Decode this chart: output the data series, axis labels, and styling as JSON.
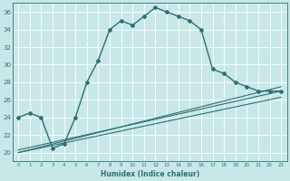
{
  "xlabel": "Humidex (Indice chaleur)",
  "bg_color": "#c8e8e8",
  "grid_color": "#ffffff",
  "line_color": "#2d7070",
  "xlim": [
    -0.5,
    23.5
  ],
  "ylim": [
    19,
    37
  ],
  "yticks": [
    20,
    22,
    24,
    26,
    28,
    30,
    32,
    34,
    36
  ],
  "xticks": [
    0,
    1,
    2,
    3,
    4,
    5,
    6,
    7,
    8,
    9,
    10,
    11,
    12,
    13,
    14,
    15,
    16,
    17,
    18,
    19,
    20,
    21,
    22,
    23
  ],
  "series": [
    {
      "x": [
        0,
        1,
        2,
        3,
        4,
        5,
        6,
        7,
        8,
        9,
        10,
        11,
        12,
        13,
        14,
        15,
        16,
        17,
        18,
        19,
        20,
        21,
        22,
        23
      ],
      "y": [
        24.0,
        24.5,
        24.0,
        20.5,
        21.0,
        24.0,
        28.0,
        30.5,
        34.0,
        35.0,
        34.5,
        35.5,
        36.5,
        36.0,
        35.5,
        35.0,
        34.0,
        29.5,
        29.0,
        28.0,
        27.5,
        27.0,
        27.0,
        27.0
      ],
      "marker": "D",
      "markersize": 2.0,
      "linewidth": 1.0
    },
    {
      "x": [
        0,
        23
      ],
      "y": [
        20.0,
        27.5
      ],
      "marker": null,
      "linewidth": 0.8
    },
    {
      "x": [
        0,
        23
      ],
      "y": [
        20.3,
        27.0
      ],
      "marker": null,
      "linewidth": 0.8
    },
    {
      "x": [
        0,
        23
      ],
      "y": [
        20.0,
        26.3
      ],
      "marker": null,
      "linewidth": 0.8
    }
  ]
}
